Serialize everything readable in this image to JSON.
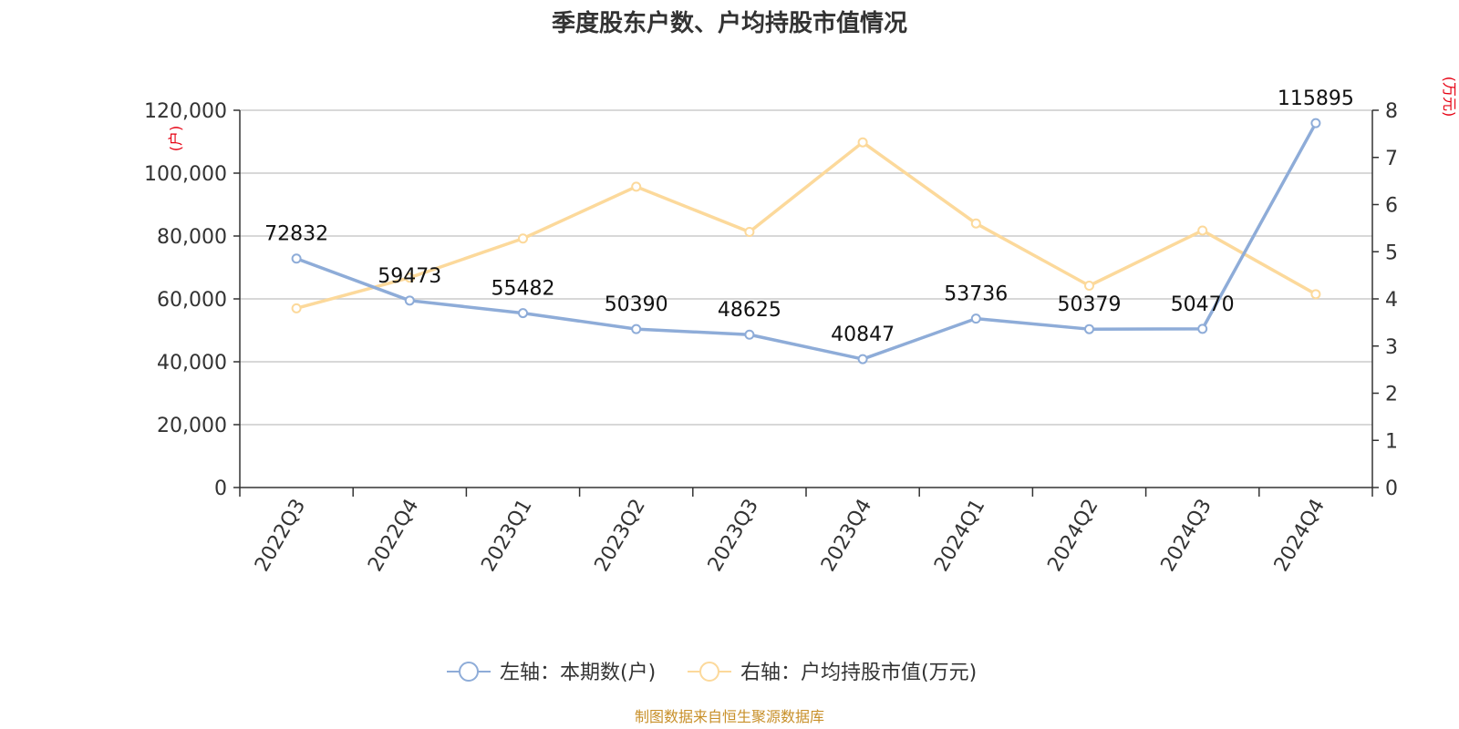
{
  "chart_data": {
    "type": "line",
    "title": "季度股东户数、户均持股市值情况",
    "categories": [
      "2022Q3",
      "2022Q4",
      "2023Q1",
      "2023Q2",
      "2023Q3",
      "2023Q4",
      "2024Q1",
      "2024Q2",
      "2024Q3",
      "2024Q4"
    ],
    "left_axis": {
      "unit": "(户)",
      "ylim": [
        0,
        120000
      ],
      "ticks": [
        0,
        20000,
        40000,
        60000,
        80000,
        100000,
        120000
      ],
      "tick_labels": [
        "0",
        "20,000",
        "40,000",
        "60,000",
        "80,000",
        "100,000",
        "120,000"
      ]
    },
    "right_axis": {
      "unit": "(万元)",
      "ylim": [
        0,
        8
      ],
      "ticks": [
        0,
        1,
        2,
        3,
        4,
        5,
        6,
        7,
        8
      ],
      "tick_labels": [
        "0",
        "1",
        "2",
        "3",
        "4",
        "5",
        "6",
        "7",
        "8"
      ]
    },
    "series": [
      {
        "name": "左轴：本期数(户)",
        "axis": "left",
        "color": "#8eacd8",
        "values": [
          72832,
          59473,
          55482,
          50390,
          48625,
          40847,
          53736,
          50379,
          50470,
          115895
        ],
        "data_labels": [
          "72832",
          "59473",
          "55482",
          "50390",
          "48625",
          "40847",
          "53736",
          "50379",
          "50470",
          "115895"
        ]
      },
      {
        "name": "右轴：户均持股市值(万元)",
        "axis": "right",
        "color": "#fcd99b",
        "values": [
          3.8,
          4.45,
          5.28,
          6.38,
          5.42,
          7.32,
          5.6,
          4.28,
          5.45,
          4.1
        ]
      }
    ],
    "grid": true,
    "legend_position": "bottom-center",
    "source": "制图数据来自恒生聚源数据库"
  }
}
